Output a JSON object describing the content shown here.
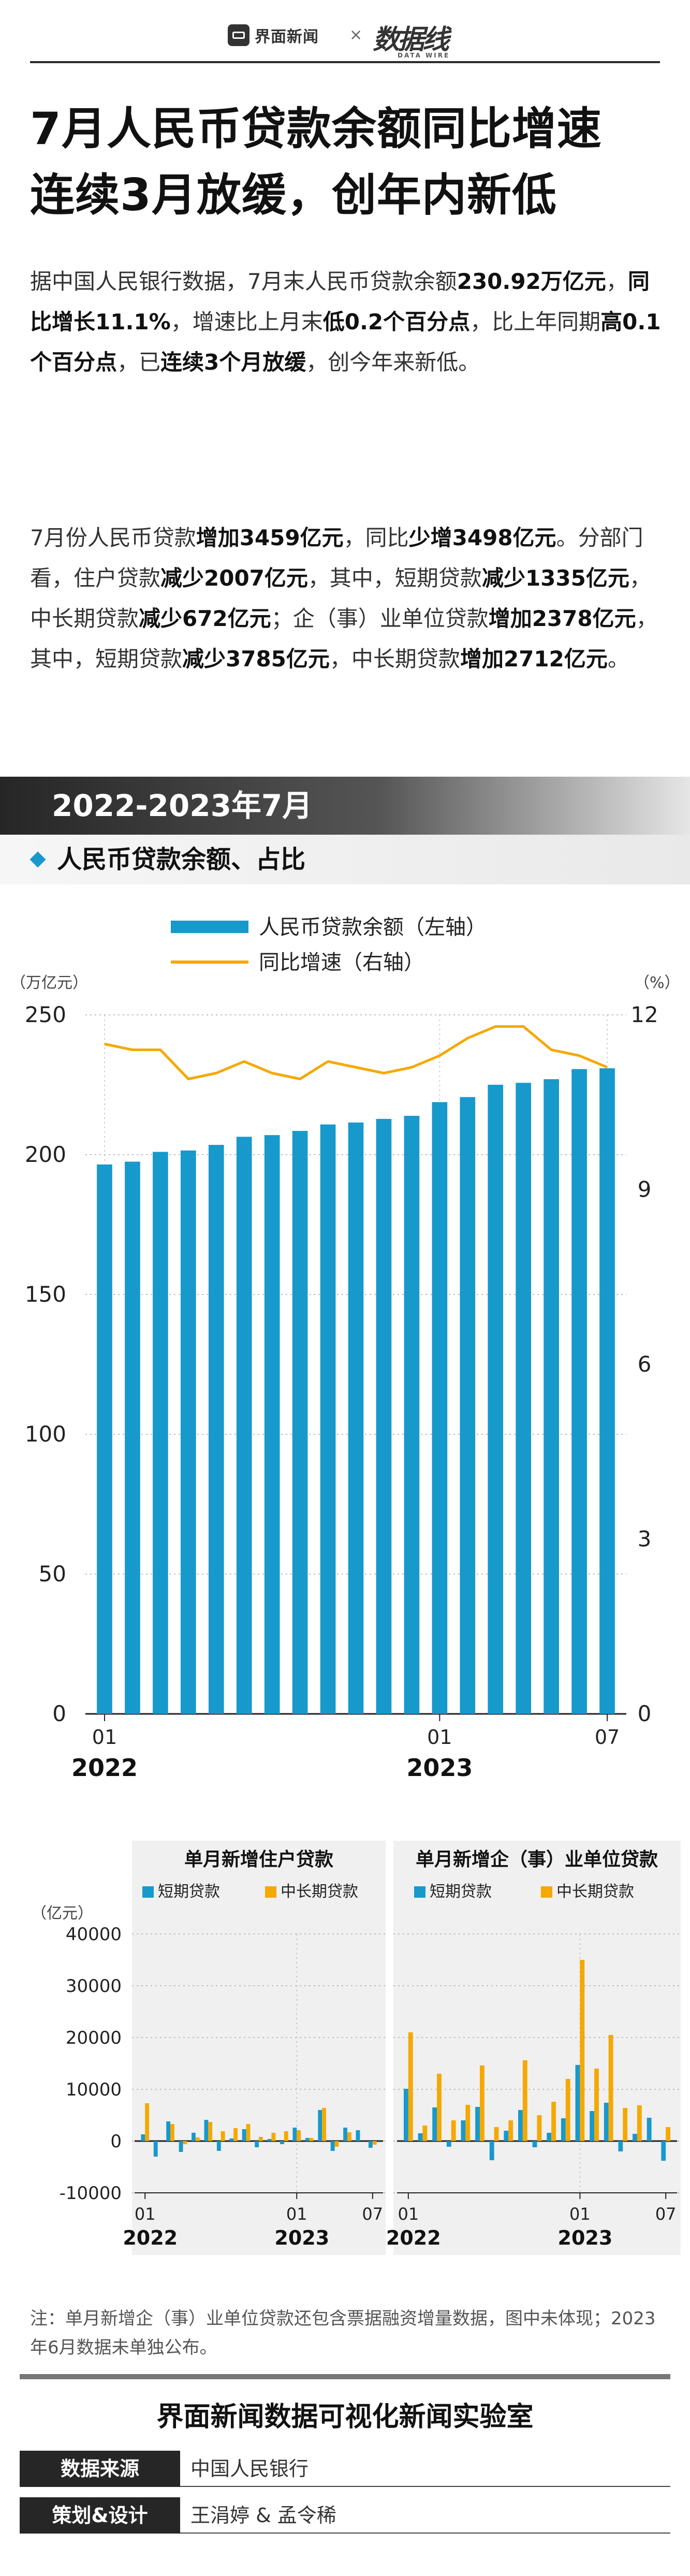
{
  "header": {
    "brand": "界面新闻",
    "times": "×",
    "partner": "数据线",
    "partner_sub": "DATA WIRE"
  },
  "title": [
    "7月人民币贷款余额同比增速",
    "连续3月放缓，创年内新低"
  ],
  "paragraphs": [
    [
      {
        "t": "据中国人民银行数据，7月末人民币贷款余额",
        "b": false
      },
      {
        "t": "230.92万亿元",
        "b": true
      },
      {
        "t": "，",
        "b": false
      },
      {
        "t": "同比增长11.1%",
        "b": true
      },
      {
        "t": "，增速比上月末",
        "b": false
      },
      {
        "t": "低0.2个百分点",
        "b": true
      },
      {
        "t": "，比上年同期",
        "b": false
      },
      {
        "t": "高0.1个百分点",
        "b": true
      },
      {
        "t": "，已",
        "b": false
      },
      {
        "t": "连续3个月放缓",
        "b": true
      },
      {
        "t": "，创今年来新低。",
        "b": false
      }
    ],
    [
      {
        "t": "7月份人民币贷款",
        "b": false
      },
      {
        "t": "增加3459亿元",
        "b": true
      },
      {
        "t": "，同比",
        "b": false
      },
      {
        "t": "少增3498亿元",
        "b": true
      },
      {
        "t": "。分部门看，住户贷款",
        "b": false
      },
      {
        "t": "减少2007亿元",
        "b": true
      },
      {
        "t": "，其中，短期贷款",
        "b": false
      },
      {
        "t": "减少1335亿元",
        "b": true
      },
      {
        "t": "，中长期贷款",
        "b": false
      },
      {
        "t": "减少672亿元",
        "b": true
      },
      {
        "t": "；企（事）业单位贷款",
        "b": false
      },
      {
        "t": "增加2378亿元",
        "b": true
      },
      {
        "t": "，其中，短期贷款",
        "b": false
      },
      {
        "t": "减少3785亿元",
        "b": true
      },
      {
        "t": "，中长期贷款",
        "b": false
      },
      {
        "t": "增加2712亿元",
        "b": true
      },
      {
        "t": "。",
        "b": false
      }
    ]
  ],
  "section": {
    "period": "2022-2023年7月",
    "subtitle": "人民币贷款余额、占比"
  },
  "colors": {
    "bar": "#1799cc",
    "line": "#f5a800",
    "dark": "#262626"
  },
  "chart_data": [
    {
      "type": "bar+line",
      "legend": [
        "人民币贷款余额（左轴）",
        "同比增速（右轴）"
      ],
      "left_unit": "（万亿元）",
      "right_unit": "（%）",
      "left_ticks": [
        0,
        50,
        100,
        150,
        200,
        250
      ],
      "right_ticks": [
        0,
        3,
        6,
        9,
        12
      ],
      "ylim_left": [
        0,
        250
      ],
      "ylim_right": [
        0,
        12
      ],
      "x": [
        "2022-01",
        "2022-02",
        "2022-03",
        "2022-04",
        "2022-05",
        "2022-06",
        "2022-07",
        "2022-08",
        "2022-09",
        "2022-10",
        "2022-11",
        "2022-12",
        "2023-01",
        "2023-02",
        "2023-03",
        "2023-04",
        "2023-05",
        "2023-06",
        "2023-07"
      ],
      "x_tick_labels": [
        {
          "i": 0,
          "m": "01",
          "y": "2022"
        },
        {
          "i": 12,
          "m": "01",
          "y": "2023"
        },
        {
          "i": 18,
          "m": "07",
          "y": ""
        }
      ],
      "balance": [
        196.5,
        197.5,
        201.0,
        201.5,
        203.5,
        206.4,
        207.0,
        208.5,
        210.8,
        211.5,
        212.8,
        213.9,
        218.8,
        220.6,
        225.0,
        225.7,
        227.0,
        230.6,
        230.9
      ],
      "growth": [
        11.5,
        11.4,
        11.4,
        10.9,
        11.0,
        11.2,
        11.0,
        10.9,
        11.2,
        11.1,
        11.0,
        11.1,
        11.3,
        11.6,
        11.8,
        11.8,
        11.4,
        11.3,
        11.1
      ]
    },
    {
      "type": "bar",
      "title": "单月新增住户贷款",
      "unit": "（亿元）",
      "legend": [
        "短期贷款",
        "中长期贷款"
      ],
      "ticks": [
        -10000,
        0,
        10000,
        20000,
        30000,
        40000
      ],
      "ylim": [
        -10000,
        40000
      ],
      "x_tick_labels": [
        {
          "i": 0,
          "m": "01",
          "y": "2022"
        },
        {
          "i": 12,
          "m": "01",
          "y": "2023"
        },
        {
          "i": 18,
          "m": "07",
          "y": ""
        }
      ],
      "series": [
        {
          "name": "短期贷款",
          "values": [
            1300,
            -3000,
            3800,
            -2100,
            1600,
            4100,
            -1900,
            500,
            2300,
            -1200,
            400,
            -600,
            2600,
            600,
            6000,
            -1900,
            2600,
            2100,
            -1300
          ]
        },
        {
          "name": "中长期贷款",
          "values": [
            7300,
            null,
            3300,
            -600,
            700,
            3700,
            1900,
            2500,
            3300,
            800,
            1600,
            1900,
            2100,
            600,
            6400,
            -1100,
            1700,
            null,
            -700
          ]
        }
      ]
    },
    {
      "type": "bar",
      "title": "单月新增企（事）业单位贷款",
      "legend": [
        "短期贷款",
        "中长期贷款"
      ],
      "ylim": [
        -10000,
        40000
      ],
      "x_tick_labels": [
        {
          "i": 0,
          "m": "01",
          "y": "2022"
        },
        {
          "i": 12,
          "m": "01",
          "y": "2023"
        },
        {
          "i": 18,
          "m": "07",
          "y": ""
        }
      ],
      "series": [
        {
          "name": "短期贷款",
          "values": [
            10100,
            1500,
            6500,
            -1100,
            4000,
            6600,
            -3700,
            2000,
            6000,
            -1200,
            1600,
            4400,
            14700,
            5800,
            7400,
            -2000,
            1400,
            4500,
            -3800
          ]
        },
        {
          "name": "中长期贷款",
          "values": [
            21000,
            3000,
            13000,
            4000,
            7000,
            14600,
            2700,
            4000,
            15600,
            5000,
            7600,
            12000,
            35000,
            14000,
            20500,
            6400,
            6900,
            null,
            2700
          ]
        }
      ]
    }
  ],
  "note": "注：单月新增企（事）业单位贷款还包含票据融资增量数据，图中未体现；2023年6月数据未单独公布。",
  "footer": {
    "lab": "界面新闻数据可视化新闻实验室",
    "rows": [
      {
        "label": "数据来源",
        "value": "中国人民银行"
      },
      {
        "label": "策划&设计",
        "value": "王涓婷 & 孟令稀"
      }
    ]
  }
}
